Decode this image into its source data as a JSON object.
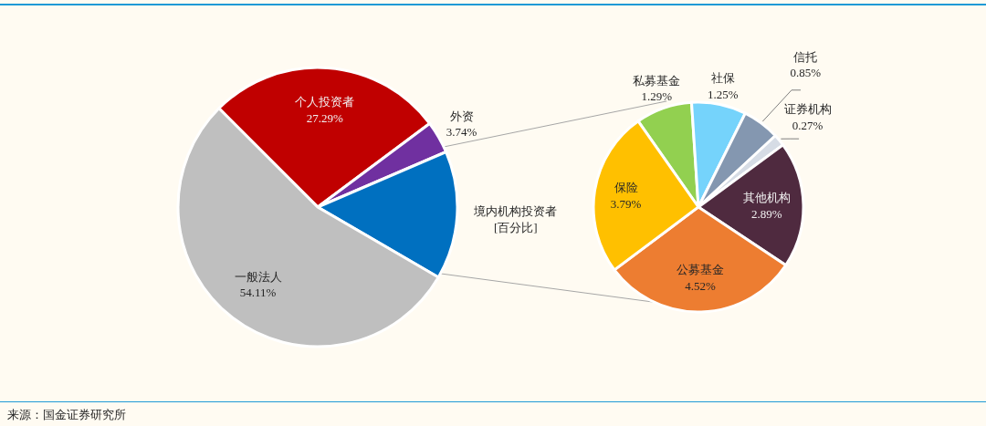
{
  "chart_data": [
    {
      "type": "pie",
      "categories": [
        "个人投资者",
        "外资",
        "境内机构投资者",
        "一般法人"
      ],
      "values": [
        27.29,
        3.74,
        14.86,
        54.11
      ],
      "value_labels": [
        "27.29%",
        "3.74%",
        "[百分比]",
        "54.11%"
      ],
      "colors": [
        "#c00000",
        "#7030a0",
        "#0070c0",
        "#bfbfbf"
      ],
      "annotations": [
        "来源：国金证券研究所"
      ]
    },
    {
      "type": "pie",
      "categories": [
        "私募基金",
        "社保",
        "信托",
        "证券机构",
        "其他机构",
        "公募基金",
        "保险"
      ],
      "values": [
        1.29,
        1.25,
        0.85,
        0.27,
        2.89,
        4.52,
        3.79
      ],
      "value_labels": [
        "1.29%",
        "1.25%",
        "0.85%",
        "0.27%",
        "2.89%",
        "4.52%",
        "3.79%"
      ],
      "colors": [
        "#92d050",
        "#75d3fb",
        "#8497b0",
        "#d6dce5",
        "#4f2a3f",
        "#ed7d31",
        "#ffc000"
      ]
    }
  ]
}
